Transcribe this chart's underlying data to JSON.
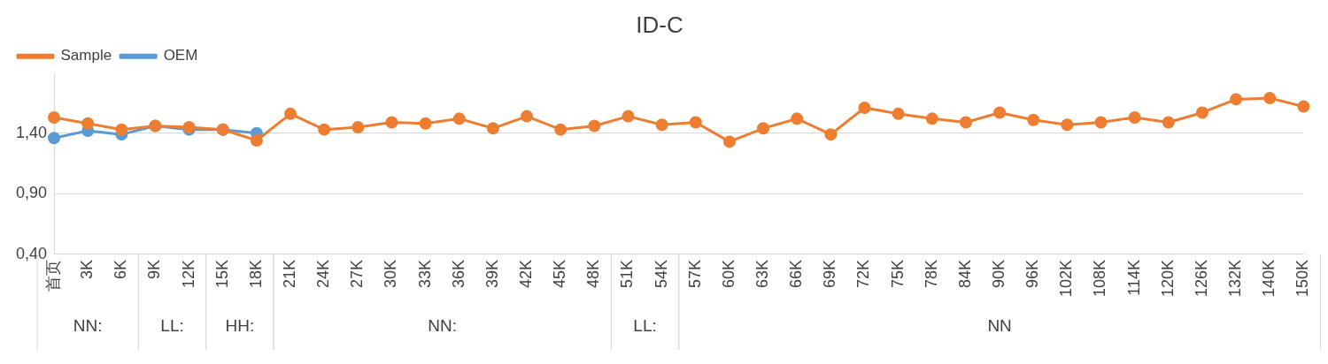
{
  "chart_data": {
    "type": "line",
    "title": "ID-C",
    "categories": [
      "首页",
      "3K",
      "6K",
      "9K",
      "12K",
      "15K",
      "18K",
      "21K",
      "24K",
      "27K",
      "30K",
      "33K",
      "36K",
      "39K",
      "42K",
      "45K",
      "48K",
      "51K",
      "54K",
      "57K",
      "60K",
      "63K",
      "66K",
      "69K",
      "72K",
      "75K",
      "78K",
      "84K",
      "90K",
      "96K",
      "102K",
      "108K",
      "114K",
      "120K",
      "126K",
      "132K",
      "140K",
      "150K"
    ],
    "series": [
      {
        "name": "OEM",
        "color": "#5b9bd5",
        "values": [
          1.36,
          1.42,
          1.39,
          1.46,
          1.43,
          1.43,
          1.4,
          null,
          null,
          null,
          null,
          null,
          null,
          null,
          null,
          null,
          null,
          null,
          null,
          null,
          null,
          null,
          null,
          null,
          null,
          null,
          null,
          null,
          null,
          null,
          null,
          null,
          null,
          null,
          null,
          null,
          null,
          null
        ]
      },
      {
        "name": "Sample",
        "color": "#ed7d31",
        "values": [
          1.53,
          1.48,
          1.43,
          1.46,
          1.45,
          1.43,
          1.34,
          1.56,
          1.43,
          1.45,
          1.49,
          1.48,
          1.52,
          1.44,
          1.54,
          1.43,
          1.46,
          1.54,
          1.47,
          1.49,
          1.33,
          1.44,
          1.52,
          1.39,
          1.61,
          1.56,
          1.52,
          1.49,
          1.57,
          1.51,
          1.47,
          1.49,
          1.53,
          1.49,
          1.57,
          1.68,
          1.69,
          1.62
        ]
      }
    ],
    "ylim": [
      0.4,
      1.9
    ],
    "yticks": [
      {
        "value": 0.4,
        "label": "0,40"
      },
      {
        "value": 0.9,
        "label": "0,90"
      },
      {
        "value": 1.4,
        "label": "1,40"
      }
    ],
    "grid": "y",
    "legend": "top left",
    "marker": "circle",
    "line_style": "solid",
    "annotations": [
      "NN:",
      "LL:",
      "HH:",
      "NN:",
      "LL:",
      "NN"
    ]
  }
}
